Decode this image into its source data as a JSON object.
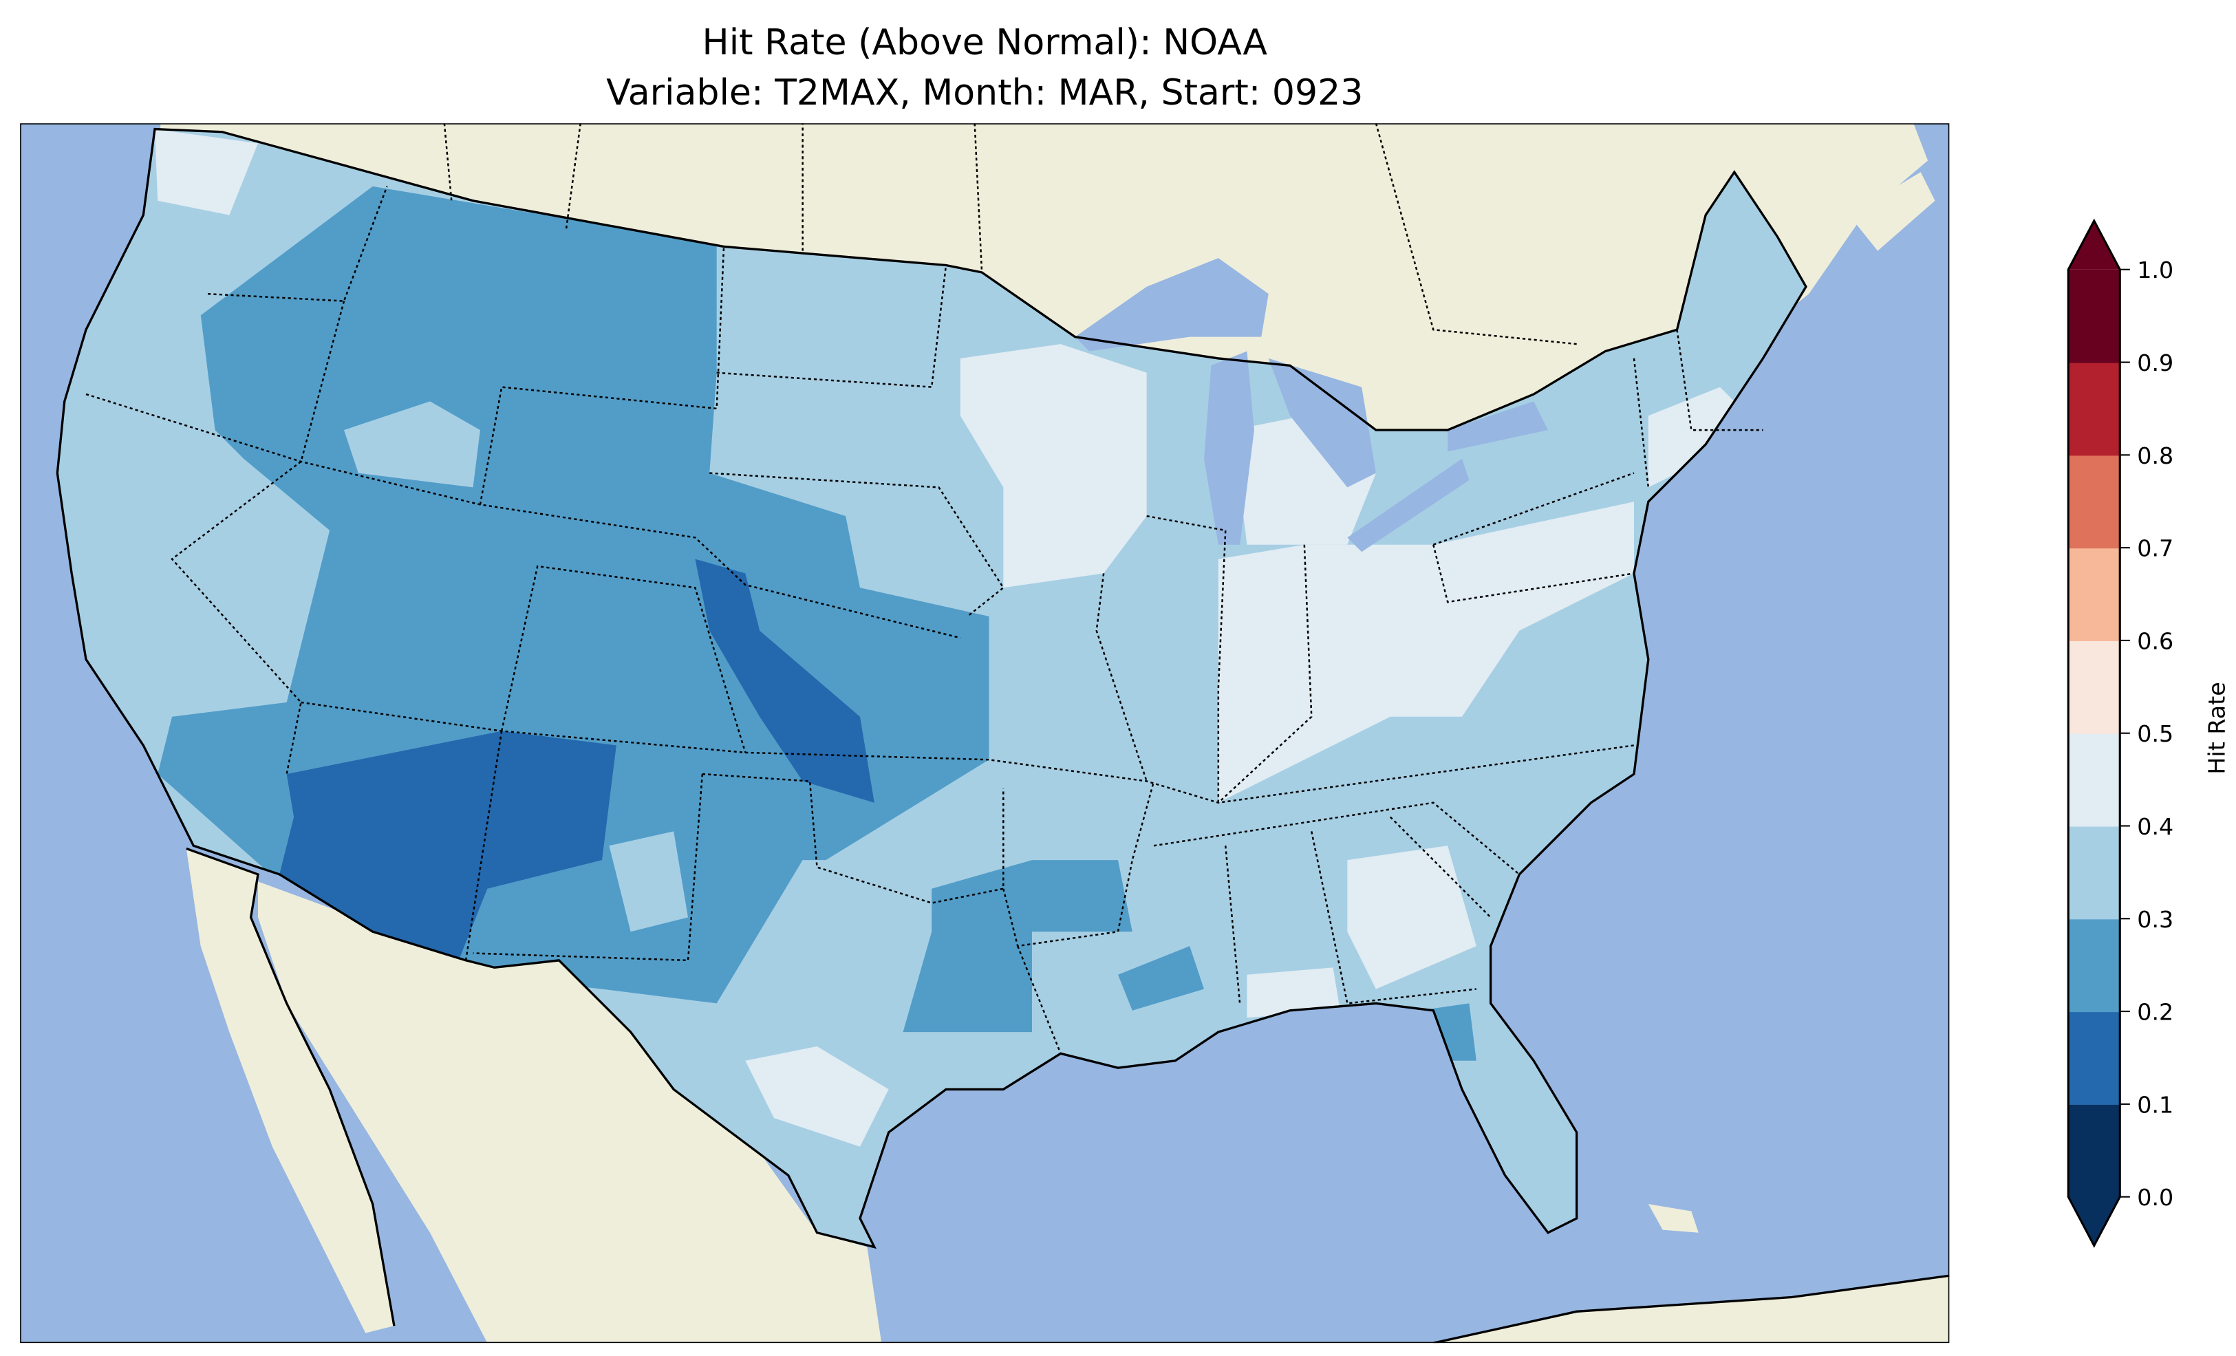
{
  "title": {
    "line1": "Hit Rate (Above Normal): NOAA",
    "line2": "Variable: T2MAX, Month: MAR, Start: 0923"
  },
  "colors": {
    "ocean": "#97b6e1",
    "land": "#efeedb",
    "lake": "#97b6e1"
  },
  "colorbar": {
    "label": "Hit Rate",
    "extend": "both",
    "bounds": [
      0.0,
      0.1,
      0.2,
      0.3,
      0.4,
      0.5,
      0.6,
      0.7,
      0.8,
      0.9,
      1.0
    ],
    "tick_labels": [
      "0.0",
      "0.1",
      "0.2",
      "0.3",
      "0.4",
      "0.5",
      "0.6",
      "0.7",
      "0.8",
      "0.9",
      "1.0"
    ],
    "colors": [
      "#08305e",
      "#2468ae",
      "#529dc8",
      "#a7cfe4",
      "#e1ecf3",
      "#f9e7de",
      "#f6b898",
      "#de725a",
      "#b2212d",
      "#68001f"
    ]
  }
}
